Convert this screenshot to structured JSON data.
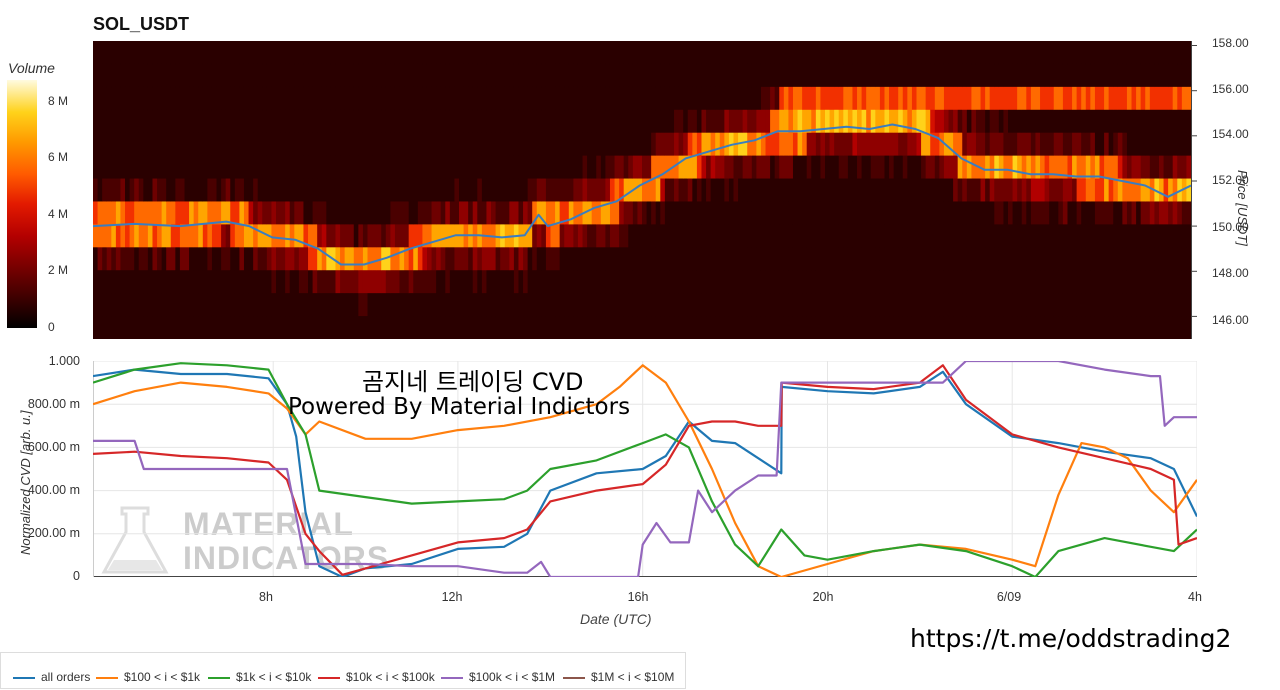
{
  "title": "SOL_USDT",
  "colorbar": {
    "label": "Volume",
    "ticks": [
      "8 M",
      "6 M",
      "4 M",
      "2 M",
      "0"
    ]
  },
  "price_axis": {
    "label": "Price [USDT]",
    "ticks": [
      "158.00",
      "156.00",
      "154.00",
      "152.00",
      "150.00",
      "148.00",
      "146.00"
    ]
  },
  "cvd_axis": {
    "label": "Normalized CVD [arb. u.]",
    "ticks": [
      "1.000",
      "800.00 m",
      "600.00 m",
      "400.00 m",
      "200.00 m",
      "0"
    ]
  },
  "x_axis": {
    "label": "Date (UTC)",
    "ticks": [
      "8h",
      "12h",
      "16h",
      "20h",
      "6/09",
      "4h"
    ]
  },
  "overlay": {
    "line1": "곰지네 트레이딩 CVD",
    "line2": "Powered By Material Indictors"
  },
  "watermark": {
    "line1": "MATERIAL",
    "line2": "INDICATORS"
  },
  "footer_link": "https://t.me/oddstrading2",
  "legend": [
    {
      "label": "all orders",
      "color": "#1f77b4"
    },
    {
      "label": "$100 < i < $1k",
      "color": "#ff7f0e"
    },
    {
      "label": "$1k < i < $10k",
      "color": "#2ca02c"
    },
    {
      "label": "$10k < i < $100k",
      "color": "#d62728"
    },
    {
      "label": "$100k < i < $1M",
      "color": "#9467bd"
    },
    {
      "label": "$1M < i < $10M",
      "color": "#8c564b"
    }
  ],
  "chart_data": [
    {
      "type": "heatmap",
      "title": "SOL_USDT",
      "xlabel": "",
      "ylabel": "Price [USDT]",
      "colorbar_label": "Volume",
      "colorbar_range": [
        0,
        9000000
      ],
      "ylim": [
        145,
        158.2
      ],
      "price_series": {
        "color": "#3a7dc0",
        "x_hours": [
          4.1,
          5,
          6,
          7,
          7.5,
          8,
          8.5,
          9,
          9.5,
          10,
          10.5,
          11,
          11.5,
          12,
          12.5,
          13,
          13.5,
          13.8,
          14,
          14.5,
          15,
          15.5,
          16,
          16.5,
          17,
          17.5,
          18,
          18.5,
          19,
          19.5,
          20,
          20.5,
          21,
          21.5,
          22,
          22.5,
          23,
          23.5,
          24,
          24.5,
          25,
          25.5,
          26,
          26.5,
          27,
          27.5,
          28
        ],
        "values": [
          150.0,
          150.1,
          150.0,
          150.2,
          150.0,
          149.5,
          149.4,
          149.0,
          148.3,
          148.3,
          148.6,
          149.0,
          149.3,
          149.6,
          149.6,
          149.5,
          149.6,
          150.5,
          150.0,
          150.3,
          150.8,
          151.1,
          151.8,
          152.3,
          153.0,
          153.3,
          153.6,
          153.8,
          154.2,
          154.2,
          154.3,
          154.4,
          154.3,
          154.5,
          154.3,
          153.9,
          153.0,
          152.5,
          152.5,
          152.3,
          152.3,
          152.2,
          152.2,
          152.0,
          151.8,
          151.3,
          151.8
        ]
      }
    },
    {
      "type": "line",
      "xlabel": "Date (UTC)",
      "ylabel": "Normalized CVD [arb. u.]",
      "ylim": [
        0,
        1
      ],
      "xlim_hours": [
        4.1,
        28
      ],
      "x_ticks": [
        "8h",
        "12h",
        "16h",
        "20h",
        "6/09",
        "4h"
      ],
      "series": [
        {
          "name": "all orders",
          "color": "#1f77b4",
          "x": [
            4.1,
            5,
            6,
            7,
            7.9,
            8.3,
            8.5,
            8.7,
            9,
            9.5,
            10,
            11,
            12,
            13,
            13.5,
            14,
            15,
            16,
            16.5,
            17,
            17.5,
            18,
            18.5,
            19,
            19.01,
            20,
            21,
            22,
            22.5,
            23,
            24,
            25,
            26,
            27,
            27.5,
            28
          ],
          "values": [
            0.93,
            0.96,
            0.94,
            0.94,
            0.92,
            0.8,
            0.65,
            0.3,
            0.05,
            0.0,
            0.04,
            0.06,
            0.13,
            0.14,
            0.2,
            0.4,
            0.48,
            0.5,
            0.56,
            0.72,
            0.63,
            0.62,
            0.55,
            0.48,
            0.88,
            0.86,
            0.85,
            0.88,
            0.95,
            0.8,
            0.65,
            0.62,
            0.58,
            0.55,
            0.5,
            0.28
          ]
        },
        {
          "name": "$100 < i < $1k",
          "color": "#ff7f0e",
          "x": [
            4.1,
            5,
            6,
            7,
            7.9,
            8.3,
            8.7,
            9,
            10,
            11,
            12,
            13,
            14,
            15,
            15.5,
            16,
            16.5,
            17,
            17.5,
            18,
            18.5,
            19,
            20,
            21,
            22,
            23,
            24,
            24.5,
            25,
            25.5,
            26,
            26.5,
            27,
            27.5,
            28
          ],
          "values": [
            0.8,
            0.86,
            0.9,
            0.88,
            0.85,
            0.78,
            0.66,
            0.72,
            0.64,
            0.64,
            0.68,
            0.7,
            0.74,
            0.8,
            0.88,
            0.98,
            0.9,
            0.72,
            0.5,
            0.25,
            0.05,
            0.0,
            0.06,
            0.12,
            0.15,
            0.13,
            0.08,
            0.05,
            0.38,
            0.62,
            0.6,
            0.55,
            0.4,
            0.3,
            0.45
          ]
        },
        {
          "name": "$1k < i < $10k",
          "color": "#2ca02c",
          "x": [
            4.1,
            5,
            6,
            7,
            7.9,
            8.3,
            8.7,
            9,
            10,
            11,
            12,
            13,
            13.5,
            14,
            15,
            16,
            16.5,
            17,
            17.5,
            18,
            18.5,
            19,
            19.5,
            20,
            21,
            22,
            23,
            24,
            24.5,
            25,
            26,
            27,
            27.5,
            28
          ],
          "values": [
            0.9,
            0.96,
            0.99,
            0.98,
            0.96,
            0.8,
            0.66,
            0.4,
            0.37,
            0.34,
            0.35,
            0.36,
            0.4,
            0.5,
            0.54,
            0.62,
            0.66,
            0.6,
            0.35,
            0.15,
            0.05,
            0.22,
            0.1,
            0.08,
            0.12,
            0.15,
            0.12,
            0.05,
            0.0,
            0.12,
            0.18,
            0.14,
            0.12,
            0.22
          ]
        },
        {
          "name": "$10k < i < $100k",
          "color": "#d62728",
          "x": [
            4.1,
            5,
            6,
            7,
            7.9,
            8.3,
            8.7,
            9,
            9.5,
            10,
            11,
            12,
            13,
            13.5,
            14,
            15,
            16,
            16.5,
            17,
            17.5,
            18,
            18.5,
            19,
            19.01,
            20,
            21,
            22,
            22.5,
            23,
            24,
            25,
            26,
            27,
            27.5,
            27.6,
            28
          ],
          "values": [
            0.57,
            0.58,
            0.56,
            0.55,
            0.53,
            0.45,
            0.2,
            0.12,
            0.01,
            0.04,
            0.1,
            0.16,
            0.18,
            0.22,
            0.35,
            0.4,
            0.43,
            0.52,
            0.7,
            0.72,
            0.72,
            0.7,
            0.7,
            0.9,
            0.88,
            0.87,
            0.9,
            0.98,
            0.82,
            0.66,
            0.6,
            0.55,
            0.5,
            0.45,
            0.15,
            0.18
          ]
        },
        {
          "name": "$100k < i < $1M",
          "color": "#9467bd",
          "x": [
            4.1,
            5,
            5.2,
            6,
            7,
            7.9,
            8.3,
            8.7,
            9,
            10,
            11,
            12,
            13,
            13.5,
            13.8,
            14,
            15,
            15.9,
            16,
            16.3,
            16.6,
            17,
            17.2,
            17.5,
            18,
            18.5,
            18.9,
            19,
            20,
            21,
            22,
            22.5,
            23,
            24,
            25,
            26,
            27,
            27.2,
            27.3,
            27.5,
            28
          ],
          "values": [
            0.63,
            0.63,
            0.5,
            0.5,
            0.5,
            0.5,
            0.5,
            0.06,
            0.06,
            0.06,
            0.05,
            0.05,
            0.02,
            0.02,
            0.07,
            0.0,
            0.0,
            0.0,
            0.15,
            0.25,
            0.16,
            0.16,
            0.4,
            0.3,
            0.4,
            0.47,
            0.47,
            0.9,
            0.9,
            0.9,
            0.9,
            0.9,
            1.0,
            1.0,
            1.0,
            0.96,
            0.93,
            0.93,
            0.7,
            0.74,
            0.74
          ]
        },
        {
          "name": "$1M < i < $10M",
          "color": "#8c564b",
          "x": [],
          "values": []
        }
      ]
    }
  ]
}
